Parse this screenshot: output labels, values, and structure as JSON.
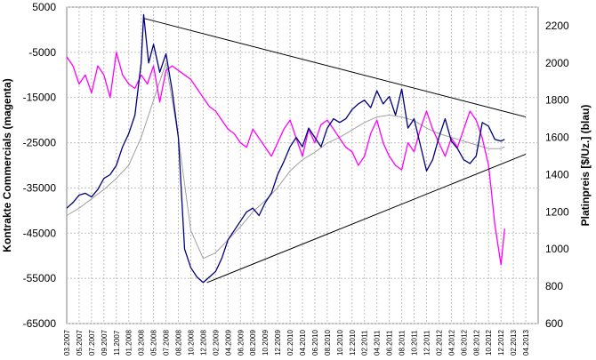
{
  "chart_data": {
    "type": "line",
    "title": "",
    "ylabel_left": "Kontrakte Commercials (magenta)",
    "ylabel_right": "Platinpreis [$/Uz.] (blau)",
    "ylim_left": [
      -65000,
      5000
    ],
    "yticks_left": [
      5000,
      -5000,
      -15000,
      -25000,
      -35000,
      -45000,
      -55000,
      -65000
    ],
    "ylim_right": [
      600,
      2300
    ],
    "yticks_right": [
      2200,
      2000,
      1800,
      1600,
      1400,
      1200,
      1000,
      800,
      600
    ],
    "x_categories": [
      "03.2007",
      "05.2007",
      "07.2007",
      "09.2007",
      "11.2007",
      "01.2008",
      "03.2008",
      "05.2008",
      "07.2008",
      "08.2008",
      "10.2008",
      "12.2008",
      "02.2009",
      "04.2009",
      "06.2009",
      "08.2009",
      "10.2009",
      "12.2009",
      "02.2010",
      "04.2010",
      "06.2010",
      "08.2010",
      "10.2010",
      "12.2010",
      "02.2011",
      "04.2011",
      "06.2011",
      "08.2011",
      "10.2011",
      "12.2011",
      "02.2012",
      "04.2012",
      "06.2012",
      "08.2012",
      "10.2012",
      "12.2012",
      "02.2013",
      "04.2013"
    ],
    "grid": true,
    "series": [
      {
        "name": "Platinpreis",
        "axis": "right",
        "color": "#00007f",
        "x": [
          0,
          0.5,
          1,
          1.5,
          2,
          2.5,
          3,
          3.5,
          4,
          4.5,
          5,
          5.5,
          6,
          6.2,
          6.6,
          7,
          7.5,
          8,
          8.5,
          9,
          9.5,
          10,
          10.5,
          11,
          11.5,
          12,
          12.5,
          13,
          13.5,
          14,
          14.5,
          15,
          15.5,
          16,
          16.5,
          17,
          17.5,
          18,
          18.5,
          19,
          19.5,
          20,
          20.5,
          21,
          21.5,
          22,
          22.5,
          23,
          23.5,
          24,
          24.5,
          25,
          25.5,
          26,
          26.5,
          27,
          27.5,
          28,
          28.5,
          29,
          29.5,
          30,
          30.5,
          31,
          31.5,
          32,
          32.5,
          33,
          33.5,
          34,
          34.5,
          35,
          35.3
        ],
        "values": [
          1220,
          1250,
          1290,
          1300,
          1280,
          1320,
          1380,
          1400,
          1450,
          1550,
          1620,
          1720,
          2000,
          2260,
          2000,
          2100,
          1950,
          2050,
          1850,
          1600,
          1000,
          900,
          850,
          820,
          850,
          880,
          950,
          1050,
          1100,
          1150,
          1200,
          1220,
          1180,
          1250,
          1300,
          1400,
          1470,
          1550,
          1600,
          1550,
          1650,
          1600,
          1550,
          1650,
          1700,
          1680,
          1700,
          1750,
          1780,
          1800,
          1760,
          1850,
          1780,
          1820,
          1720,
          1860,
          1650,
          1700,
          1560,
          1420,
          1480,
          1600,
          1700,
          1580,
          1540,
          1480,
          1460,
          1500,
          1680,
          1660,
          1590,
          1580,
          1590
        ]
      },
      {
        "name": "Kontrakte Commercials",
        "axis": "left",
        "color": "#ff00ff",
        "x": [
          0,
          0.5,
          1,
          1.5,
          2,
          2.5,
          3,
          3.5,
          4,
          4.5,
          5,
          5.5,
          6,
          6.5,
          7,
          7.5,
          8,
          8.5,
          9,
          9.5,
          10,
          10.5,
          11,
          11.5,
          12,
          12.5,
          13,
          13.5,
          14,
          14.5,
          15,
          15.5,
          16,
          16.5,
          17,
          17.5,
          18,
          18.5,
          19,
          19.5,
          20,
          20.5,
          21,
          21.5,
          22,
          22.5,
          23,
          23.5,
          24,
          24.5,
          25,
          25.5,
          26,
          26.5,
          27,
          27.5,
          28,
          28.5,
          29,
          29.5,
          30,
          30.5,
          31,
          31.5,
          32,
          32.5,
          33,
          33.5,
          34,
          34.2,
          34.5,
          35,
          35.3
        ],
        "values": [
          -6000,
          -8000,
          -12000,
          -10000,
          -14000,
          -8000,
          -10000,
          -15000,
          -5000,
          -10000,
          -12000,
          -13000,
          -10000,
          -12000,
          -8000,
          -16000,
          -9000,
          -8000,
          -9000,
          -10000,
          -11000,
          -13000,
          -15000,
          -17000,
          -18000,
          -20000,
          -22000,
          -23000,
          -25000,
          -26000,
          -22000,
          -24000,
          -26000,
          -28000,
          -25000,
          -22000,
          -20000,
          -24000,
          -28000,
          -22000,
          -25000,
          -21000,
          -20000,
          -22000,
          -24000,
          -26000,
          -27000,
          -30000,
          -28000,
          -23000,
          -20000,
          -25000,
          -28000,
          -30000,
          -31000,
          -25000,
          -27000,
          -22000,
          -18000,
          -22000,
          -25000,
          -28000,
          -24000,
          -26000,
          -22000,
          -18000,
          -20000,
          -24000,
          -30000,
          -35000,
          -43000,
          -52000,
          -44000
        ]
      },
      {
        "name": "",
        "axis": "right",
        "color": "#a0a0a0",
        "x": [
          0,
          1,
          2,
          3,
          4,
          5,
          6,
          7,
          8,
          9,
          10,
          11,
          12,
          13,
          14,
          15,
          16,
          17,
          18,
          19,
          20,
          21,
          22,
          23,
          24,
          25,
          26,
          27,
          28,
          29,
          30,
          31,
          32,
          33,
          34,
          35,
          35.3
        ],
        "values": [
          1180,
          1220,
          1270,
          1320,
          1380,
          1450,
          1600,
          1800,
          2000,
          1600,
          1100,
          950,
          980,
          1050,
          1120,
          1200,
          1260,
          1330,
          1420,
          1480,
          1520,
          1570,
          1600,
          1640,
          1680,
          1710,
          1720,
          1710,
          1690,
          1650,
          1620,
          1600,
          1580,
          1560,
          1540,
          1540,
          1550
        ]
      }
    ],
    "trendlines": [
      {
        "axis": "right",
        "x": [
          6.2,
          37.0
        ],
        "values": [
          2240,
          1710
        ]
      },
      {
        "axis": "right",
        "x": [
          11.3,
          37.0
        ],
        "values": [
          820,
          1510
        ]
      }
    ]
  }
}
